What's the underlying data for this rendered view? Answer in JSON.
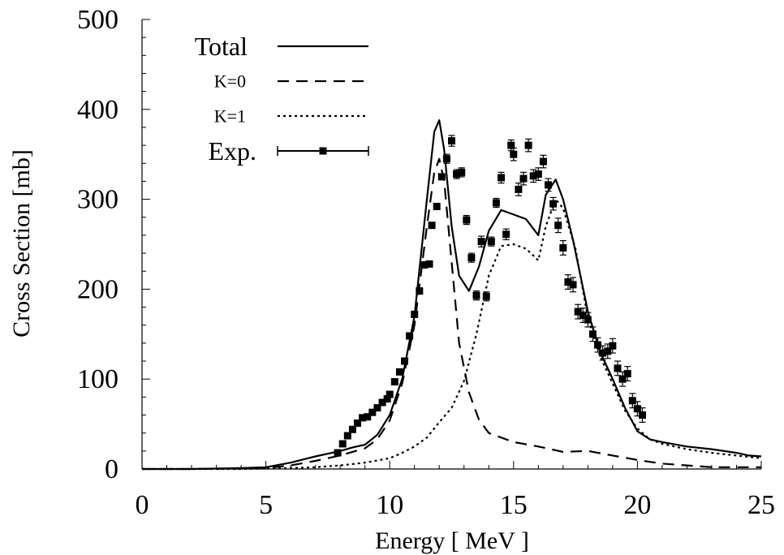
{
  "chart_data": {
    "type": "line",
    "title": "",
    "xlabel": "Energy [ MeV ]",
    "ylabel": "Cross Section [mb]",
    "xlim": [
      0,
      25
    ],
    "ylim": [
      0,
      500
    ],
    "xticks": [
      "0",
      "5",
      "10",
      "15",
      "20",
      "25"
    ],
    "yticks": [
      "0",
      "100",
      "200",
      "300",
      "400",
      "500"
    ],
    "legend_position": "top-left",
    "grid": false,
    "series": [
      {
        "name": "Total",
        "style": "solid",
        "x": [
          0,
          2,
          4,
          5,
          6,
          7,
          8,
          8.5,
          9,
          9.5,
          10,
          10.5,
          11,
          11.5,
          11.8,
          12,
          12.2,
          12.5,
          12.8,
          13.2,
          13.6,
          14,
          14.5,
          15,
          15.5,
          16,
          16.3,
          16.7,
          17,
          17.4,
          18,
          18.5,
          19,
          19.5,
          20,
          20.5,
          21,
          22,
          23,
          24,
          24.5,
          25
        ],
        "y": [
          0,
          0,
          1,
          2,
          7,
          14,
          20,
          24,
          27,
          38,
          60,
          100,
          170,
          300,
          375,
          388,
          355,
          270,
          215,
          198,
          225,
          265,
          288,
          283,
          278,
          260,
          305,
          322,
          300,
          255,
          175,
          130,
          100,
          68,
          42,
          33,
          30,
          25,
          22,
          18,
          15,
          14
        ]
      },
      {
        "name": "K=0",
        "style": "dashed",
        "x": [
          0,
          2,
          4,
          5,
          6,
          7,
          8,
          8.5,
          9,
          9.5,
          10,
          10.5,
          11,
          11.5,
          11.8,
          12,
          12.2,
          12.5,
          12.8,
          13.2,
          13.6,
          14,
          15,
          16,
          17,
          18,
          19,
          20,
          21,
          22,
          23,
          24,
          25
        ],
        "y": [
          0,
          0,
          0.5,
          1,
          4,
          9,
          15,
          19,
          23,
          33,
          54,
          95,
          160,
          270,
          330,
          345,
          320,
          230,
          140,
          85,
          55,
          40,
          30,
          25,
          19,
          20,
          15,
          10,
          6,
          4,
          2,
          2,
          2
        ]
      },
      {
        "name": "K=1",
        "style": "dotted",
        "x": [
          0,
          4,
          6,
          7,
          8,
          9,
          10,
          10.5,
          11,
          11.5,
          12,
          12.5,
          13,
          13.5,
          14,
          14.5,
          15,
          15.5,
          16,
          16.3,
          16.7,
          17,
          17.5,
          18,
          18.5,
          19,
          19.5,
          20,
          20.5,
          21,
          22,
          23,
          24,
          25
        ],
        "y": [
          0,
          0,
          1,
          2,
          4,
          7,
          12,
          18,
          25,
          35,
          52,
          68,
          98,
          150,
          215,
          248,
          250,
          245,
          232,
          270,
          300,
          290,
          245,
          168,
          125,
          95,
          65,
          45,
          33,
          28,
          22,
          18,
          15,
          12
        ]
      },
      {
        "name": "Exp.",
        "style": "markers-errorbars",
        "points": [
          [
            7.9,
            18,
            0
          ],
          [
            8.1,
            28,
            0
          ],
          [
            8.3,
            37,
            0
          ],
          [
            8.5,
            44,
            0
          ],
          [
            8.7,
            51,
            0
          ],
          [
            8.9,
            57,
            0
          ],
          [
            9.1,
            58,
            0
          ],
          [
            9.3,
            63,
            0
          ],
          [
            9.5,
            68,
            0
          ],
          [
            9.7,
            74,
            0
          ],
          [
            9.9,
            78,
            0
          ],
          [
            10.0,
            83,
            0
          ],
          [
            10.2,
            97,
            0
          ],
          [
            10.4,
            108,
            0
          ],
          [
            10.6,
            120,
            0
          ],
          [
            10.8,
            148,
            0
          ],
          [
            11.0,
            172,
            0
          ],
          [
            11.2,
            198,
            0
          ],
          [
            11.4,
            227,
            0
          ],
          [
            11.6,
            228,
            0
          ],
          [
            11.7,
            271,
            0
          ],
          [
            11.9,
            292,
            0
          ],
          [
            12.1,
            325,
            0
          ],
          [
            12.3,
            345,
            5
          ],
          [
            12.5,
            365,
            6
          ],
          [
            12.7,
            328,
            5
          ],
          [
            12.9,
            330,
            5
          ],
          [
            13.1,
            277,
            5
          ],
          [
            13.3,
            235,
            5
          ],
          [
            13.5,
            193,
            5
          ],
          [
            13.7,
            253,
            6
          ],
          [
            13.9,
            192,
            5
          ],
          [
            14.1,
            253,
            5
          ],
          [
            14.3,
            296,
            5
          ],
          [
            14.5,
            324,
            6
          ],
          [
            14.7,
            261,
            6
          ],
          [
            14.9,
            360,
            6
          ],
          [
            15.0,
            350,
            7
          ],
          [
            15.2,
            311,
            7
          ],
          [
            15.4,
            323,
            7
          ],
          [
            15.6,
            360,
            7
          ],
          [
            15.8,
            326,
            7
          ],
          [
            16.0,
            328,
            7
          ],
          [
            16.2,
            342,
            7
          ],
          [
            16.4,
            316,
            7
          ],
          [
            16.6,
            295,
            7
          ],
          [
            16.8,
            271,
            8
          ],
          [
            17.0,
            246,
            8
          ],
          [
            17.2,
            208,
            8
          ],
          [
            17.4,
            205,
            8
          ],
          [
            17.6,
            175,
            8
          ],
          [
            17.8,
            171,
            8
          ],
          [
            18.0,
            166,
            8
          ],
          [
            18.2,
            150,
            8
          ],
          [
            18.4,
            138,
            8
          ],
          [
            18.6,
            129,
            8
          ],
          [
            18.8,
            131,
            8
          ],
          [
            19.0,
            137,
            8
          ],
          [
            19.2,
            112,
            8
          ],
          [
            19.4,
            100,
            8
          ],
          [
            19.6,
            106,
            8
          ],
          [
            19.8,
            76,
            8
          ],
          [
            20.0,
            67,
            8
          ],
          [
            20.2,
            60,
            8
          ]
        ]
      }
    ]
  }
}
